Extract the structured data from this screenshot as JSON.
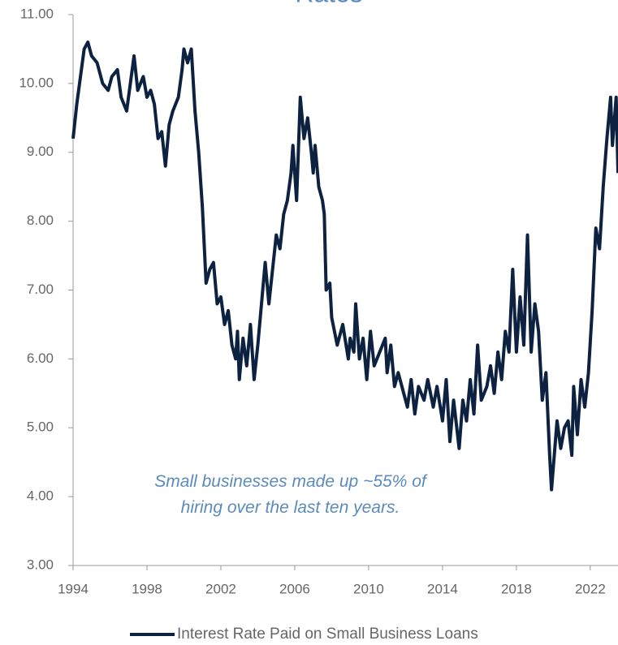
{
  "chart_data": {
    "type": "line",
    "title": "Rates",
    "annotation": "Small businesses made up ~55% of hiring over the last ten years.",
    "xlim": [
      1994,
      2023.5
    ],
    "xticks": [
      1994,
      1998,
      2002,
      2006,
      2010,
      2014,
      2018,
      2022
    ],
    "ylim": [
      3,
      11
    ],
    "yticks": [
      {
        "value": 3,
        "label": "3.00"
      },
      {
        "value": 4,
        "label": "4.00"
      },
      {
        "value": 5,
        "label": "5.00"
      },
      {
        "value": 6,
        "label": "6.00"
      },
      {
        "value": 7,
        "label": "7.00"
      },
      {
        "value": 8,
        "label": "8.00"
      },
      {
        "value": 9,
        "label": "9.00"
      },
      {
        "value": 10,
        "label": "10.00"
      },
      {
        "value": 11,
        "label": "11.00"
      }
    ],
    "grid": false,
    "x": [
      1994.0,
      1994.2,
      1994.4,
      1994.6,
      1994.8,
      1995.0,
      1995.3,
      1995.6,
      1995.9,
      1996.1,
      1996.4,
      1996.6,
      1996.9,
      1997.1,
      1997.3,
      1997.5,
      1997.8,
      1998.0,
      1998.2,
      1998.4,
      1998.6,
      1998.8,
      1999.0,
      1999.2,
      1999.4,
      1999.7,
      1999.9,
      2000.0,
      2000.2,
      2000.4,
      2000.6,
      2000.8,
      2001.0,
      2001.2,
      2001.4,
      2001.6,
      2001.8,
      2002.0,
      2002.2,
      2002.4,
      2002.6,
      2002.8,
      2002.9,
      2003.0,
      2003.2,
      2003.4,
      2003.6,
      2003.8,
      2004.0,
      2004.2,
      2004.4,
      2004.6,
      2004.8,
      2005.0,
      2005.2,
      2005.4,
      2005.6,
      2005.8,
      2005.9,
      2006.1,
      2006.3,
      2006.5,
      2006.7,
      2006.9,
      2007.0,
      2007.1,
      2007.3,
      2007.5,
      2007.6,
      2007.7,
      2007.9,
      2008.0,
      2008.3,
      2008.6,
      2008.9,
      2009.0,
      2009.2,
      2009.3,
      2009.5,
      2009.7,
      2009.9,
      2010.1,
      2010.3,
      2010.6,
      2010.9,
      2011.0,
      2011.2,
      2011.4,
      2011.6,
      2011.9,
      2012.1,
      2012.3,
      2012.5,
      2012.7,
      2013.0,
      2013.2,
      2013.5,
      2013.7,
      2014.0,
      2014.2,
      2014.4,
      2014.6,
      2014.9,
      2015.1,
      2015.3,
      2015.5,
      2015.7,
      2015.9,
      2016.1,
      2016.4,
      2016.6,
      2016.8,
      2017.0,
      2017.2,
      2017.4,
      2017.6,
      2017.8,
      2018.0,
      2018.2,
      2018.4,
      2018.6,
      2018.8,
      2019.0,
      2019.2,
      2019.4,
      2019.6,
      2019.8,
      2019.9,
      2020.2,
      2020.4,
      2020.6,
      2020.8,
      2021.0,
      2021.1,
      2021.3,
      2021.5,
      2021.7,
      2021.9,
      2022.1,
      2022.3,
      2022.5,
      2022.7,
      2022.9,
      2023.1,
      2023.2,
      2023.4,
      2023.5
    ],
    "series": [
      {
        "name": "Interest Rate Paid on Small Business Loans",
        "color": "#0d2240",
        "values": [
          9.2,
          9.7,
          10.1,
          10.5,
          10.6,
          10.4,
          10.3,
          10.0,
          9.9,
          10.1,
          10.2,
          9.8,
          9.6,
          10.0,
          10.4,
          9.9,
          10.1,
          9.8,
          9.9,
          9.7,
          9.2,
          9.3,
          8.8,
          9.4,
          9.6,
          9.8,
          10.2,
          10.5,
          10.3,
          10.5,
          9.6,
          9.0,
          8.2,
          7.1,
          7.3,
          7.4,
          6.8,
          6.9,
          6.5,
          6.7,
          6.2,
          6.0,
          6.4,
          5.7,
          6.3,
          5.9,
          6.5,
          5.7,
          6.2,
          6.8,
          7.4,
          6.8,
          7.3,
          7.8,
          7.6,
          8.1,
          8.3,
          8.7,
          9.1,
          8.3,
          9.8,
          9.2,
          9.5,
          9.0,
          8.7,
          9.1,
          8.5,
          8.3,
          8.1,
          7.0,
          7.1,
          6.6,
          6.2,
          6.5,
          6.0,
          6.3,
          6.1,
          6.8,
          6.0,
          6.3,
          5.7,
          6.4,
          5.9,
          6.1,
          6.3,
          5.8,
          6.2,
          5.6,
          5.8,
          5.5,
          5.3,
          5.7,
          5.2,
          5.6,
          5.4,
          5.7,
          5.3,
          5.6,
          5.1,
          5.7,
          4.8,
          5.4,
          4.7,
          5.4,
          5.1,
          5.7,
          5.2,
          6.2,
          5.4,
          5.6,
          5.9,
          5.5,
          6.1,
          5.7,
          6.4,
          6.1,
          7.3,
          6.1,
          6.9,
          6.2,
          7.8,
          6.1,
          6.8,
          6.4,
          5.4,
          5.8,
          4.6,
          4.1,
          5.1,
          4.7,
          5.0,
          5.1,
          4.6,
          5.6,
          4.9,
          5.7,
          5.3,
          5.8,
          6.7,
          7.9,
          7.6,
          8.5,
          9.2,
          9.8,
          9.1,
          9.8,
          8.7
        ]
      }
    ]
  }
}
